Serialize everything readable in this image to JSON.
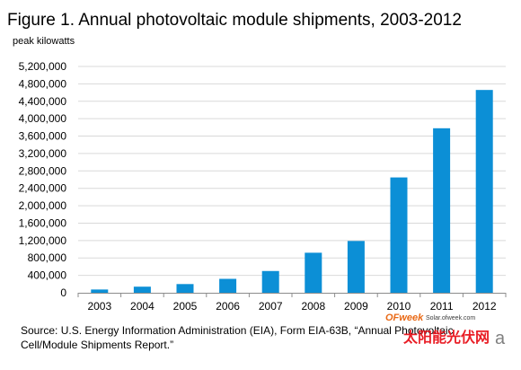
{
  "chart_data": {
    "type": "bar",
    "title": "Figure 1. Annual photovoltaic module shipments, 2003-2012",
    "ylabel": "peak kilowatts",
    "xlabel": "",
    "categories": [
      "2003",
      "2004",
      "2005",
      "2006",
      "2007",
      "2008",
      "2009",
      "2010",
      "2011",
      "2012"
    ],
    "values": [
      75000,
      140000,
      200000,
      320000,
      500000,
      920000,
      1190000,
      2650000,
      3780000,
      4660000
    ],
    "ylim": [
      0,
      5200000
    ],
    "yticks": [
      0,
      400000,
      800000,
      1200000,
      1600000,
      2000000,
      2400000,
      2800000,
      3200000,
      3600000,
      4000000,
      4400000,
      4800000,
      5200000
    ],
    "ytick_labels": [
      "0",
      "400,000",
      "800,000",
      "1,200,000",
      "1,600,000",
      "2,000,000",
      "2,400,000",
      "2,800,000",
      "3,200,000",
      "3,600,000",
      "4,000,000",
      "4,400,000",
      "4,800,000",
      "5,200,000"
    ],
    "grid": true,
    "legend": "none",
    "bar_color": "#0c8fd6"
  },
  "source": {
    "line1": "Source:  U.S. Energy Information Administration (EIA), Form EIA-63B, “Annual Photovoltaic",
    "line2": "Cell/Module Shipments Report.”"
  },
  "watermark": {
    "logo": "OFweek",
    "url": "Solar.ofweek.com",
    "chinese": "太阳能光伏网",
    "eia_mark": "a"
  }
}
